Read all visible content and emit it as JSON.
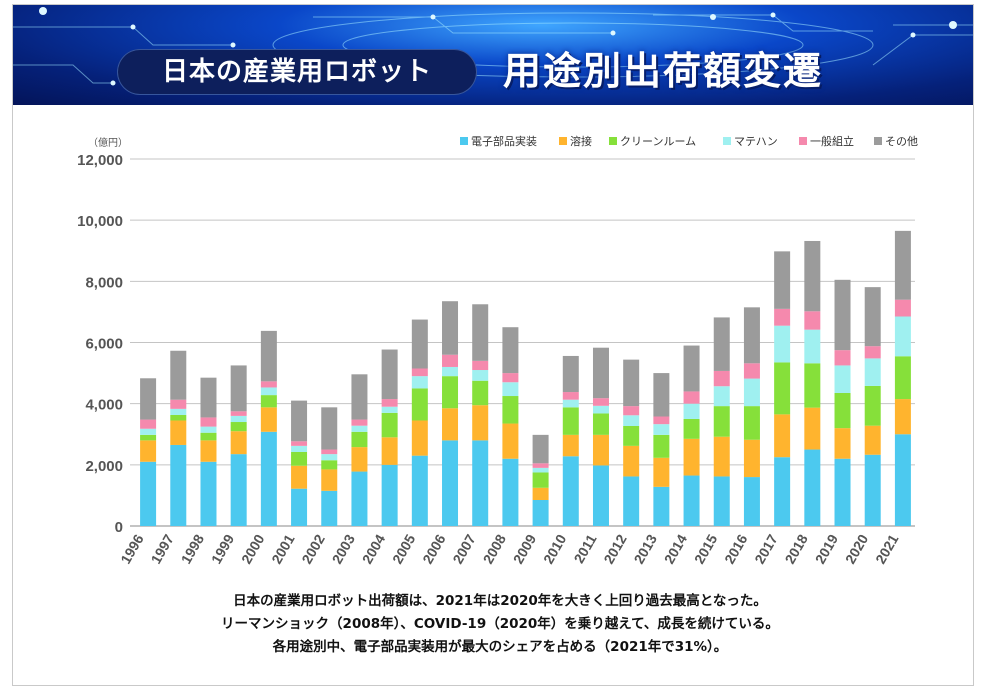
{
  "banner": {
    "subtitle": "日本の産業用ロボット",
    "title": "用途別出荷額変遷"
  },
  "colors": {
    "電子部品実装": "#4cc9ef",
    "溶接": "#ffb42e",
    "クリーンルーム": "#86e03a",
    "マテハン": "#9ff0f0",
    "一般組立": "#f589ad",
    "その他": "#9b9b9b"
  },
  "chart_data": {
    "type": "bar",
    "stacked": true,
    "unit_label": "（億円）",
    "ylim": [
      0,
      12000
    ],
    "yticks": [
      "0",
      "2,000",
      "4,000",
      "6,000",
      "8,000",
      "10,000",
      "12,000"
    ],
    "grid": true,
    "legend_position": "top-right",
    "categories": [
      "1996",
      "1997",
      "1998",
      "1999",
      "2000",
      "2001",
      "2002",
      "2003",
      "2004",
      "2005",
      "2006",
      "2007",
      "2008",
      "2009",
      "2010",
      "2011",
      "2012",
      "2013",
      "2014",
      "2015",
      "2016",
      "2017",
      "2018",
      "2019",
      "2020",
      "2021"
    ],
    "series": [
      {
        "name": "電子部品実装",
        "values": [
          2100,
          2650,
          2100,
          2350,
          3080,
          1220,
          1150,
          1780,
          2000,
          2300,
          2800,
          2800,
          2200,
          850,
          2280,
          1980,
          1620,
          1280,
          1650,
          1620,
          1600,
          2250,
          2500,
          2200,
          2330,
          3000
        ]
      },
      {
        "name": "溶接",
        "values": [
          700,
          800,
          700,
          750,
          800,
          750,
          700,
          800,
          900,
          1150,
          1050,
          1150,
          1150,
          400,
          700,
          1000,
          1000,
          950,
          1200,
          1300,
          1220,
          1400,
          1370,
          1000,
          950,
          1150
        ]
      },
      {
        "name": "クリーンルーム",
        "values": [
          180,
          180,
          250,
          300,
          400,
          450,
          300,
          500,
          800,
          1050,
          1050,
          800,
          900,
          500,
          900,
          700,
          650,
          750,
          650,
          1000,
          1100,
          1700,
          1450,
          1150,
          1300,
          1400
        ]
      },
      {
        "name": "マテハン",
        "values": [
          200,
          200,
          200,
          200,
          250,
          200,
          200,
          200,
          200,
          400,
          300,
          350,
          450,
          150,
          250,
          250,
          350,
          350,
          500,
          650,
          900,
          1200,
          1100,
          900,
          900,
          1300
        ]
      },
      {
        "name": "一般組立",
        "values": [
          300,
          300,
          300,
          150,
          200,
          150,
          150,
          200,
          250,
          250,
          400,
          300,
          300,
          150,
          250,
          250,
          300,
          250,
          400,
          500,
          500,
          550,
          600,
          500,
          400,
          550
        ]
      },
      {
        "name": "その他",
        "values": [
          1350,
          1600,
          1300,
          1500,
          1650,
          1330,
          1380,
          1480,
          1620,
          1600,
          1750,
          1850,
          1500,
          930,
          1180,
          1650,
          1520,
          1420,
          1500,
          1750,
          1830,
          1880,
          2300,
          2300,
          1930,
          2250
        ]
      }
    ]
  },
  "notes": [
    "日本の産業用ロボット出荷額は、2021年は2020年を大きく上回り過去最高となった。",
    "リーマンショック（2008年）、COVID-19（2020年）を乗り越えて、成長を続けている。",
    "各用途別中、電子部品実装用が最大のシェアを占める（2021年で31%）。"
  ]
}
